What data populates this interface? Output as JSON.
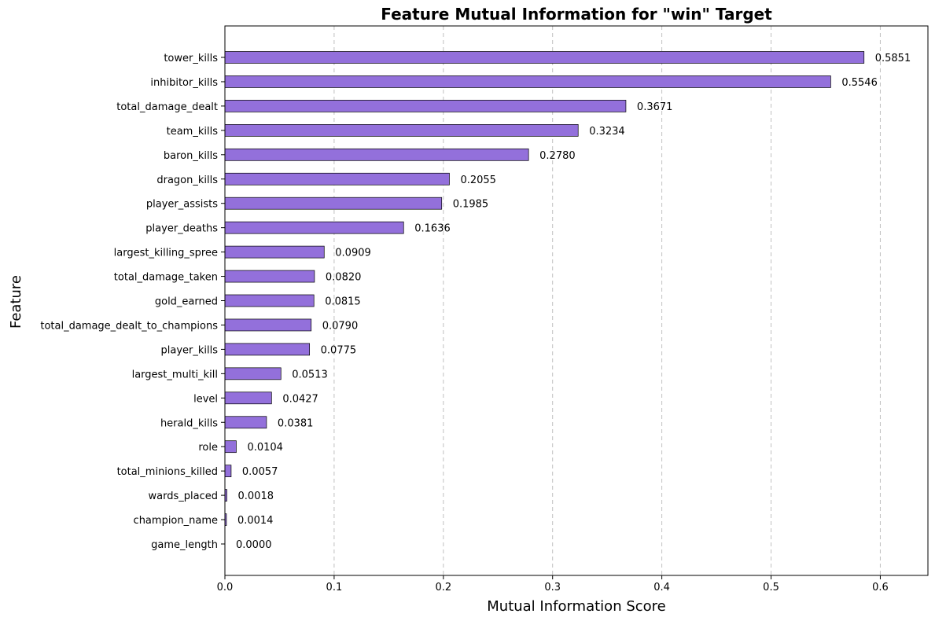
{
  "chart_data": {
    "type": "bar",
    "orientation": "horizontal",
    "title": "Feature Mutual Information for \"win\" Target",
    "xlabel": "Mutual Information Score",
    "ylabel": "Feature",
    "xlim": [
      0,
      0.6436
    ],
    "xticks": [
      "0.0",
      "0.1",
      "0.2",
      "0.3",
      "0.4",
      "0.5",
      "0.6"
    ],
    "grid": "x-axis dashed",
    "bar_color": "#9370DB",
    "bar_edge_color": "#000000",
    "categories": [
      "tower_kills",
      "inhibitor_kills",
      "total_damage_dealt",
      "team_kills",
      "baron_kills",
      "dragon_kills",
      "player_assists",
      "player_deaths",
      "largest_killing_spree",
      "total_damage_taken",
      "gold_earned",
      "total_damage_dealt_to_champions",
      "player_kills",
      "largest_multi_kill",
      "level",
      "herald_kills",
      "role",
      "total_minions_killed",
      "wards_placed",
      "champion_name",
      "game_length"
    ],
    "values": [
      0.5851,
      0.5546,
      0.3671,
      0.3234,
      0.278,
      0.2055,
      0.1985,
      0.1636,
      0.0909,
      0.082,
      0.0815,
      0.079,
      0.0775,
      0.0513,
      0.0427,
      0.0381,
      0.0104,
      0.0057,
      0.0018,
      0.0014,
      0.0
    ],
    "value_labels": [
      "0.5851",
      "0.5546",
      "0.3671",
      "0.3234",
      "0.2780",
      "0.2055",
      "0.1985",
      "0.1636",
      "0.0909",
      "0.0820",
      "0.0815",
      "0.0790",
      "0.0775",
      "0.0513",
      "0.0427",
      "0.0381",
      "0.0104",
      "0.0057",
      "0.0018",
      "0.0014",
      "0.0000"
    ]
  }
}
